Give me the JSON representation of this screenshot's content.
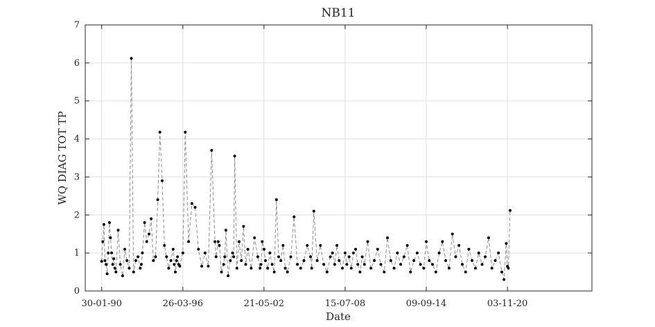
{
  "chart_data": {
    "type": "line",
    "title": "NB11",
    "xlabel": "Date",
    "ylabel": "WQ DIAG TOT TP",
    "x_ticks": [
      "30-01-90",
      "26-03-96",
      "21-05-02",
      "15-07-08",
      "09-09-14",
      "03-11-20"
    ],
    "y_ticks": [
      "0",
      "1",
      "2",
      "3",
      "4",
      "5",
      "6",
      "7"
    ],
    "xlim": [
      "1988-11-01",
      "2027-04-01"
    ],
    "ylim": [
      0,
      7
    ],
    "grid": true,
    "line_style": "dashed",
    "marker": "filled-circle",
    "series": [
      {
        "x": [
          "1990-01-30",
          "1990-03-01",
          "1990-04-01",
          "1990-05-01",
          "1990-06-01",
          "1990-07-01",
          "1990-08-01",
          "1990-09-01",
          "1990-10-01",
          "1990-11-01",
          "1990-12-01",
          "1991-01-01",
          "1991-02-01",
          "1991-03-01",
          "1991-05-01",
          "1991-07-01",
          "1991-09-01",
          "1991-11-01",
          "1992-01-01",
          "1992-03-01",
          "1992-05-01",
          "1992-07-01",
          "1992-09-01",
          "1992-11-01",
          "1993-01-01",
          "1993-02-01",
          "1993-03-01",
          "1993-05-01",
          "1993-07-01",
          "1993-09-01",
          "1993-11-01",
          "1994-01-01",
          "1994-03-01",
          "1994-05-01",
          "1994-07-01",
          "1994-09-01",
          "1994-11-01",
          "1995-01-01",
          "1995-03-01",
          "1995-05-01",
          "1995-07-01",
          "1995-08-01",
          "1995-09-01",
          "1995-10-01",
          "1995-11-01",
          "1995-12-01",
          "1996-01-01",
          "1996-03-26",
          "1996-06-01",
          "1996-09-01",
          "1996-12-01",
          "1997-03-01",
          "1997-06-01",
          "1997-09-01",
          "1997-12-01",
          "1998-03-01",
          "1998-06-01",
          "1998-09-01",
          "1998-10-01",
          "1998-12-01",
          "1999-01-01",
          "1999-03-01",
          "1999-05-01",
          "1999-06-01",
          "1999-07-01",
          "1999-09-01",
          "1999-11-01",
          "2000-01-01",
          "2000-02-01",
          "2000-03-01",
          "2000-05-01",
          "2000-07-01",
          "2000-09-01",
          "2000-11-01",
          "2001-01-01",
          "2001-03-01",
          "2001-06-01",
          "2001-09-01",
          "2001-12-01",
          "2002-02-01",
          "2002-03-01",
          "2002-04-01",
          "2002-05-21",
          "2002-07-01",
          "2002-09-01",
          "2002-11-01",
          "2003-01-01",
          "2003-03-01",
          "2003-05-01",
          "2003-07-01",
          "2003-09-01",
          "2003-11-01",
          "2004-01-01",
          "2004-03-01",
          "2004-06-01",
          "2004-09-01",
          "2004-12-01",
          "2005-03-01",
          "2005-06-01",
          "2005-09-01",
          "2005-12-01",
          "2006-01-01",
          "2006-03-01",
          "2006-06-01",
          "2006-09-01",
          "2006-12-01",
          "2007-03-01",
          "2007-06-01",
          "2007-08-01",
          "2007-10-01",
          "2007-12-01",
          "2008-02-01",
          "2008-05-01",
          "2008-07-15",
          "2008-09-01",
          "2008-11-01",
          "2009-01-01",
          "2009-03-01",
          "2009-05-01",
          "2009-07-01",
          "2009-09-01",
          "2009-11-01",
          "2010-01-01",
          "2010-04-01",
          "2010-07-01",
          "2010-10-01",
          "2011-01-01",
          "2011-04-01",
          "2011-07-01",
          "2011-10-01",
          "2012-01-01",
          "2012-04-01",
          "2012-07-01",
          "2012-10-01",
          "2013-01-01",
          "2013-04-01",
          "2013-07-01",
          "2013-10-01",
          "2014-01-01",
          "2014-04-01",
          "2014-07-01",
          "2014-09-09",
          "2014-12-01",
          "2015-03-01",
          "2015-06-01",
          "2015-09-01",
          "2015-12-01",
          "2016-03-01",
          "2016-06-01",
          "2016-09-01",
          "2016-12-01",
          "2017-03-01",
          "2017-06-01",
          "2017-09-01",
          "2017-12-01",
          "2018-03-01",
          "2018-06-01",
          "2018-09-01",
          "2018-12-01",
          "2019-03-01",
          "2019-06-01",
          "2019-09-01",
          "2019-12-01",
          "2020-03-01",
          "2020-06-01",
          "2020-08-01",
          "2020-10-01",
          "2020-11-03",
          "2020-12-01",
          "2021-01-15"
        ],
        "y": [
          0.78,
          1.3,
          1.75,
          0.8,
          0.7,
          0.45,
          1.0,
          1.8,
          1.4,
          1.0,
          0.7,
          0.85,
          0.6,
          0.5,
          1.6,
          0.7,
          0.4,
          1.1,
          0.8,
          0.6,
          6.12,
          0.5,
          0.8,
          0.9,
          0.6,
          0.7,
          1.0,
          1.8,
          1.3,
          1.5,
          1.9,
          0.8,
          0.9,
          2.4,
          4.18,
          2.9,
          1.2,
          0.9,
          0.6,
          0.8,
          1.1,
          0.7,
          0.5,
          0.8,
          0.9,
          0.7,
          0.65,
          1.0,
          4.18,
          1.3,
          2.3,
          2.2,
          1.1,
          0.65,
          1.0,
          0.65,
          3.7,
          1.3,
          0.9,
          1.3,
          1.2,
          0.5,
          0.7,
          0.9,
          1.6,
          0.4,
          0.8,
          1.0,
          0.9,
          3.55,
          0.6,
          1.3,
          0.8,
          1.7,
          0.7,
          1.1,
          0.6,
          1.4,
          0.9,
          0.6,
          0.7,
          1.3,
          1.1,
          0.8,
          0.6,
          1.0,
          0.7,
          0.5,
          2.4,
          0.9,
          0.8,
          1.2,
          0.6,
          0.5,
          0.9,
          1.95,
          0.7,
          0.6,
          0.8,
          1.2,
          0.9,
          0.6,
          2.1,
          0.8,
          1.2,
          0.7,
          0.5,
          0.9,
          1.0,
          0.7,
          1.2,
          0.8,
          0.6,
          1.0,
          0.7,
          0.9,
          0.6,
          1.0,
          1.1,
          0.7,
          0.5,
          0.9,
          0.7,
          1.3,
          0.6,
          0.8,
          1.1,
          0.7,
          0.5,
          1.4,
          0.8,
          0.6,
          1.0,
          0.7,
          0.9,
          1.2,
          0.5,
          0.8,
          1.0,
          0.7,
          0.6,
          1.3,
          0.8,
          0.7,
          0.5,
          1.0,
          1.3,
          0.8,
          0.6,
          1.5,
          0.9,
          1.2,
          0.7,
          0.5,
          1.1,
          0.8,
          0.6,
          1.0,
          0.7,
          0.9,
          1.4,
          0.6,
          0.8,
          1.0,
          0.5,
          0.3,
          1.25,
          0.65,
          0.6,
          2.12
        ]
      }
    ]
  },
  "colors": {
    "axis": "#262626",
    "grid": "#e0e0e0",
    "line": "#8c8c8c",
    "marker": "#000000"
  }
}
